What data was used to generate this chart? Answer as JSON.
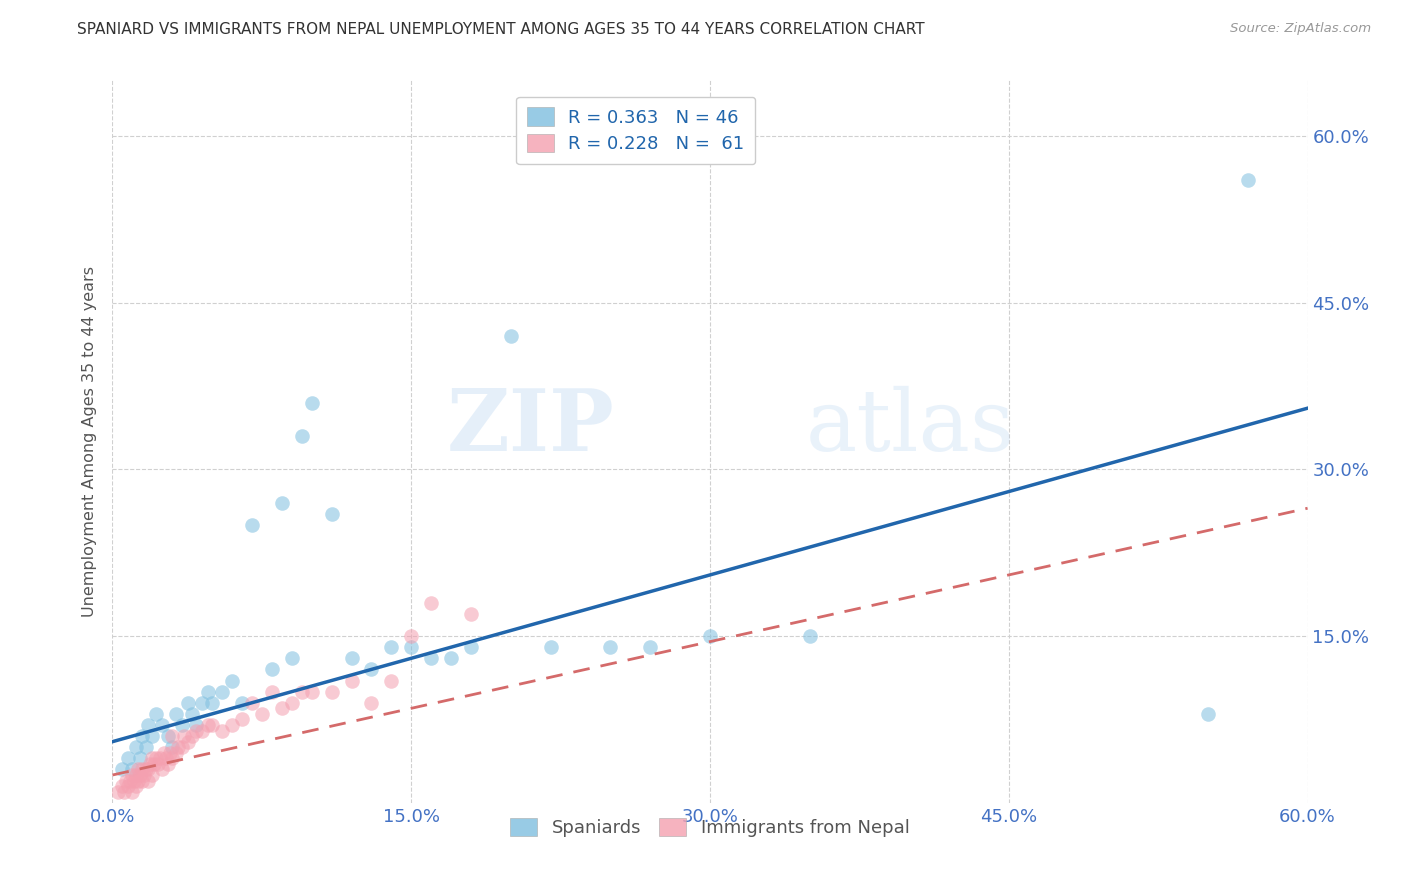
{
  "title": "SPANIARD VS IMMIGRANTS FROM NEPAL UNEMPLOYMENT AMONG AGES 35 TO 44 YEARS CORRELATION CHART",
  "source": "Source: ZipAtlas.com",
  "ylabel": "Unemployment Among Ages 35 to 44 years",
  "xlim": [
    0.0,
    0.6
  ],
  "ylim": [
    0.0,
    0.65
  ],
  "xtick_labels": [
    "0.0%",
    "15.0%",
    "30.0%",
    "45.0%",
    "60.0%"
  ],
  "xtick_vals": [
    0.0,
    0.15,
    0.3,
    0.45,
    0.6
  ],
  "ytick_labels_right": [
    "60.0%",
    "45.0%",
    "30.0%",
    "15.0%"
  ],
  "ytick_vals_right": [
    0.6,
    0.45,
    0.3,
    0.15
  ],
  "legend_r1": "R = 0.363",
  "legend_n1": "N = 46",
  "legend_r2": "R = 0.228",
  "legend_n2": "N =  61",
  "spaniards_color": "#7fbfdf",
  "nepal_color": "#f4a0b0",
  "trendline_blue_color": "#2166ac",
  "trendline_pink_color": "#d46a6a",
  "trendline_blue_x0": 0.0,
  "trendline_blue_y0": 0.055,
  "trendline_blue_x1": 0.6,
  "trendline_blue_y1": 0.355,
  "trendline_pink_x0": 0.0,
  "trendline_pink_y0": 0.025,
  "trendline_pink_x1": 0.6,
  "trendline_pink_y1": 0.265,
  "watermark_line1": "ZIP",
  "watermark_line2": "atlas",
  "background_color": "#ffffff",
  "grid_color": "#d0d0d0",
  "spaniards_x": [
    0.005,
    0.008,
    0.01,
    0.012,
    0.014,
    0.015,
    0.017,
    0.018,
    0.02,
    0.022,
    0.025,
    0.028,
    0.03,
    0.032,
    0.035,
    0.038,
    0.04,
    0.042,
    0.045,
    0.048,
    0.05,
    0.055,
    0.06,
    0.065,
    0.07,
    0.08,
    0.085,
    0.09,
    0.095,
    0.1,
    0.11,
    0.12,
    0.13,
    0.14,
    0.15,
    0.16,
    0.17,
    0.18,
    0.2,
    0.22,
    0.25,
    0.27,
    0.3,
    0.35,
    0.55,
    0.57
  ],
  "spaniards_y": [
    0.03,
    0.04,
    0.03,
    0.05,
    0.04,
    0.06,
    0.05,
    0.07,
    0.06,
    0.08,
    0.07,
    0.06,
    0.05,
    0.08,
    0.07,
    0.09,
    0.08,
    0.07,
    0.09,
    0.1,
    0.09,
    0.1,
    0.11,
    0.09,
    0.25,
    0.12,
    0.27,
    0.13,
    0.33,
    0.36,
    0.26,
    0.13,
    0.12,
    0.14,
    0.14,
    0.13,
    0.13,
    0.14,
    0.42,
    0.14,
    0.14,
    0.14,
    0.15,
    0.15,
    0.08,
    0.56
  ],
  "nepal_x": [
    0.003,
    0.005,
    0.006,
    0.007,
    0.008,
    0.009,
    0.01,
    0.01,
    0.011,
    0.012,
    0.012,
    0.013,
    0.013,
    0.014,
    0.015,
    0.015,
    0.016,
    0.017,
    0.018,
    0.018,
    0.019,
    0.02,
    0.02,
    0.021,
    0.022,
    0.023,
    0.024,
    0.025,
    0.026,
    0.027,
    0.028,
    0.029,
    0.03,
    0.03,
    0.032,
    0.033,
    0.035,
    0.036,
    0.038,
    0.04,
    0.042,
    0.045,
    0.048,
    0.05,
    0.055,
    0.06,
    0.065,
    0.07,
    0.075,
    0.08,
    0.085,
    0.09,
    0.095,
    0.1,
    0.11,
    0.12,
    0.13,
    0.14,
    0.15,
    0.16,
    0.18
  ],
  "nepal_y": [
    0.01,
    0.015,
    0.01,
    0.02,
    0.015,
    0.02,
    0.01,
    0.025,
    0.02,
    0.015,
    0.025,
    0.02,
    0.03,
    0.025,
    0.02,
    0.03,
    0.025,
    0.03,
    0.02,
    0.03,
    0.035,
    0.025,
    0.04,
    0.035,
    0.04,
    0.035,
    0.04,
    0.03,
    0.045,
    0.04,
    0.035,
    0.045,
    0.04,
    0.06,
    0.045,
    0.05,
    0.05,
    0.06,
    0.055,
    0.06,
    0.065,
    0.065,
    0.07,
    0.07,
    0.065,
    0.07,
    0.075,
    0.09,
    0.08,
    0.1,
    0.085,
    0.09,
    0.1,
    0.1,
    0.1,
    0.11,
    0.09,
    0.11,
    0.15,
    0.18,
    0.17
  ]
}
